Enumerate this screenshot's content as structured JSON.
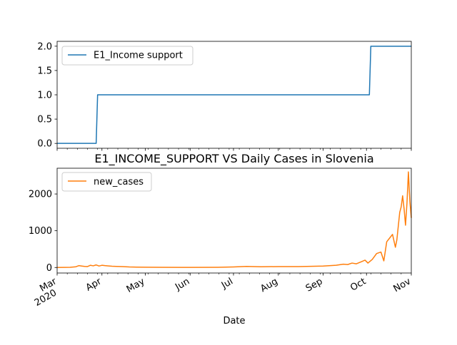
{
  "chart_data": [
    {
      "type": "line",
      "title": "",
      "xlabel": "",
      "ylabel": "",
      "x_range": [
        "2020-03-01",
        "2020-11-01"
      ],
      "ylim": [
        -0.1,
        2.1
      ],
      "y_ticks": [
        "0.0",
        "0.5",
        "1.0",
        "1.5",
        "2.0"
      ],
      "grid": false,
      "legend": "top-left",
      "series": [
        {
          "name": "E1_Income support",
          "color": "#1f77b4",
          "x": [
            "2020-03-01",
            "2020-03-28",
            "2020-03-29",
            "2020-10-03",
            "2020-10-04",
            "2020-11-01"
          ],
          "y": [
            0,
            0,
            1,
            1,
            2,
            2
          ]
        }
      ]
    },
    {
      "type": "line",
      "title": "E1_INCOME_SUPPORT VS Daily Cases in Slovenia",
      "xlabel": "Date",
      "ylabel": "",
      "x_range": [
        "2020-03-01",
        "2020-11-01"
      ],
      "ylim": [
        -150,
        2700
      ],
      "y_ticks": [
        "0",
        "1000",
        "2000"
      ],
      "x_ticks": [
        {
          "date": "2020-03-01",
          "label": "Mar",
          "sublabel": "2020"
        },
        {
          "date": "2020-04-01",
          "label": "Apr"
        },
        {
          "date": "2020-05-01",
          "label": "May"
        },
        {
          "date": "2020-06-01",
          "label": "Jun"
        },
        {
          "date": "2020-07-01",
          "label": "Jul"
        },
        {
          "date": "2020-08-01",
          "label": "Aug"
        },
        {
          "date": "2020-09-01",
          "label": "Sep"
        },
        {
          "date": "2020-10-01",
          "label": "Oct"
        },
        {
          "date": "2020-11-01",
          "label": "Nov"
        }
      ],
      "grid": false,
      "legend": "top-left",
      "series": [
        {
          "name": "new_cases",
          "color": "#ff7f0e",
          "x": [
            "2020-03-01",
            "2020-03-10",
            "2020-03-14",
            "2020-03-16",
            "2020-03-18",
            "2020-03-20",
            "2020-03-22",
            "2020-03-24",
            "2020-03-26",
            "2020-03-28",
            "2020-03-30",
            "2020-04-01",
            "2020-04-03",
            "2020-04-05",
            "2020-04-08",
            "2020-04-11",
            "2020-04-15",
            "2020-04-20",
            "2020-04-25",
            "2020-05-01",
            "2020-05-10",
            "2020-06-01",
            "2020-06-20",
            "2020-07-01",
            "2020-07-10",
            "2020-07-20",
            "2020-08-01",
            "2020-08-15",
            "2020-09-01",
            "2020-09-10",
            "2020-09-15",
            "2020-09-18",
            "2020-09-21",
            "2020-09-24",
            "2020-09-27",
            "2020-09-30",
            "2020-10-02",
            "2020-10-05",
            "2020-10-08",
            "2020-10-11",
            "2020-10-13",
            "2020-10-15",
            "2020-10-17",
            "2020-10-19",
            "2020-10-21",
            "2020-10-22",
            "2020-10-24",
            "2020-10-25",
            "2020-10-26",
            "2020-10-27",
            "2020-10-28",
            "2020-10-29",
            "2020-10-30",
            "2020-10-31",
            "2020-11-01"
          ],
          "y": [
            0,
            5,
            20,
            50,
            40,
            30,
            25,
            60,
            45,
            70,
            40,
            60,
            50,
            45,
            35,
            30,
            25,
            15,
            10,
            8,
            5,
            3,
            5,
            15,
            30,
            20,
            25,
            25,
            40,
            60,
            90,
            80,
            120,
            100,
            150,
            200,
            120,
            220,
            380,
            420,
            180,
            700,
            800,
            900,
            550,
            750,
            1500,
            1650,
            1950,
            1600,
            1150,
            1750,
            2600,
            1800,
            1350
          ]
        }
      ]
    }
  ]
}
